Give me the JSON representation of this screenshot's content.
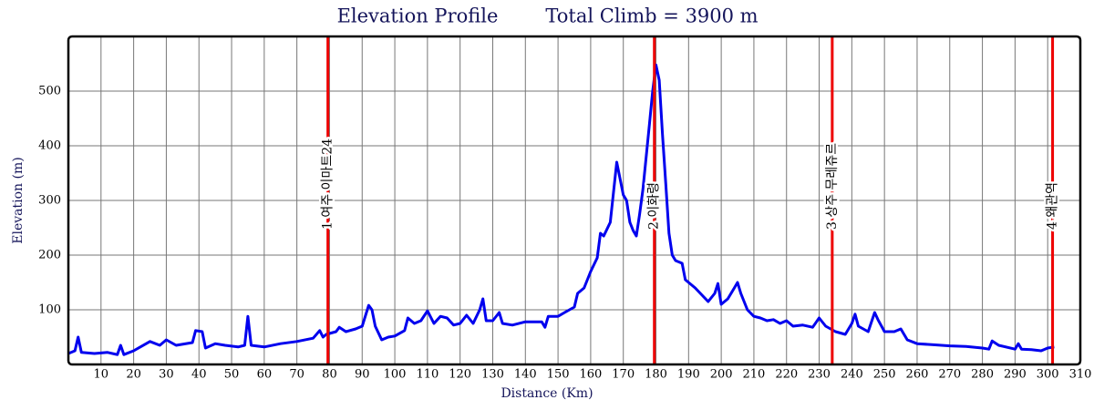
{
  "chart_data": {
    "type": "line",
    "title": "Elevation Profile",
    "subtitle": "Total Climb = 3900 m",
    "x_label": "Distance (Km)",
    "y_label": "Elevation (m)",
    "color": "#0000ee",
    "grid": true,
    "xlim": [
      0,
      310
    ],
    "ylim": [
      0,
      600
    ],
    "xticks": [
      10,
      20,
      30,
      40,
      50,
      60,
      70,
      80,
      90,
      100,
      110,
      120,
      130,
      140,
      150,
      160,
      170,
      180,
      190,
      200,
      210,
      220,
      230,
      240,
      250,
      260,
      270,
      280,
      290,
      300,
      310
    ],
    "yticks": [
      100,
      200,
      300,
      400,
      500
    ],
    "markers": [
      {
        "x": 79.5,
        "label": "1 여주 이마트24"
      },
      {
        "x": 179.5,
        "label": "2 이화령"
      },
      {
        "x": 234,
        "label": "3 상주 무레쥬르"
      },
      {
        "x": 301.5,
        "label": "4 왜관역"
      }
    ],
    "marker_color": "#ee0000",
    "x": [
      0,
      2,
      3,
      4,
      8,
      12,
      15,
      16,
      17,
      20,
      25,
      28,
      30,
      33,
      38,
      39,
      41,
      42,
      45,
      48,
      52,
      54,
      55,
      56,
      60,
      65,
      70,
      75,
      77,
      78,
      79,
      82,
      83,
      85,
      88,
      90,
      92,
      93,
      94,
      96,
      98,
      100,
      103,
      104,
      106,
      108,
      110,
      112,
      114,
      116,
      118,
      120,
      122,
      124,
      126,
      127,
      128,
      130,
      132,
      133,
      136,
      140,
      145,
      146,
      147,
      150,
      152,
      155,
      156,
      158,
      160,
      162,
      163,
      164,
      166,
      168,
      169,
      170,
      171,
      172,
      173,
      174,
      175,
      176,
      177,
      178,
      179,
      180,
      181,
      182,
      183,
      184,
      185,
      186,
      188,
      189,
      192,
      196,
      198,
      199,
      200,
      202,
      204,
      205,
      206,
      208,
      210,
      212,
      214,
      216,
      218,
      220,
      222,
      225,
      228,
      230,
      232,
      235,
      238,
      240,
      241,
      242,
      245,
      247,
      248,
      250,
      253,
      255,
      257,
      260,
      265,
      270,
      275,
      280,
      282,
      283,
      285,
      290,
      291,
      292,
      295,
      298,
      300,
      302
    ],
    "values": [
      20,
      25,
      50,
      22,
      20,
      22,
      18,
      35,
      18,
      25,
      42,
      35,
      45,
      35,
      40,
      62,
      60,
      30,
      38,
      35,
      32,
      35,
      88,
      35,
      32,
      38,
      42,
      48,
      62,
      50,
      55,
      60,
      68,
      60,
      65,
      70,
      108,
      100,
      70,
      45,
      50,
      52,
      62,
      85,
      75,
      80,
      98,
      75,
      88,
      85,
      72,
      75,
      90,
      75,
      100,
      120,
      80,
      80,
      95,
      75,
      72,
      78,
      78,
      68,
      88,
      88,
      95,
      105,
      130,
      140,
      170,
      195,
      240,
      235,
      260,
      370,
      340,
      310,
      300,
      260,
      245,
      235,
      275,
      320,
      380,
      440,
      500,
      548,
      520,
      420,
      330,
      240,
      200,
      190,
      185,
      155,
      140,
      115,
      130,
      148,
      110,
      120,
      140,
      150,
      130,
      100,
      88,
      85,
      80,
      82,
      75,
      80,
      70,
      72,
      68,
      85,
      70,
      60,
      55,
      75,
      92,
      70,
      60,
      95,
      82,
      60,
      60,
      65,
      45,
      38,
      36,
      34,
      33,
      30,
      28,
      43,
      35,
      28,
      38,
      28,
      27,
      25,
      30,
      32
    ]
  }
}
